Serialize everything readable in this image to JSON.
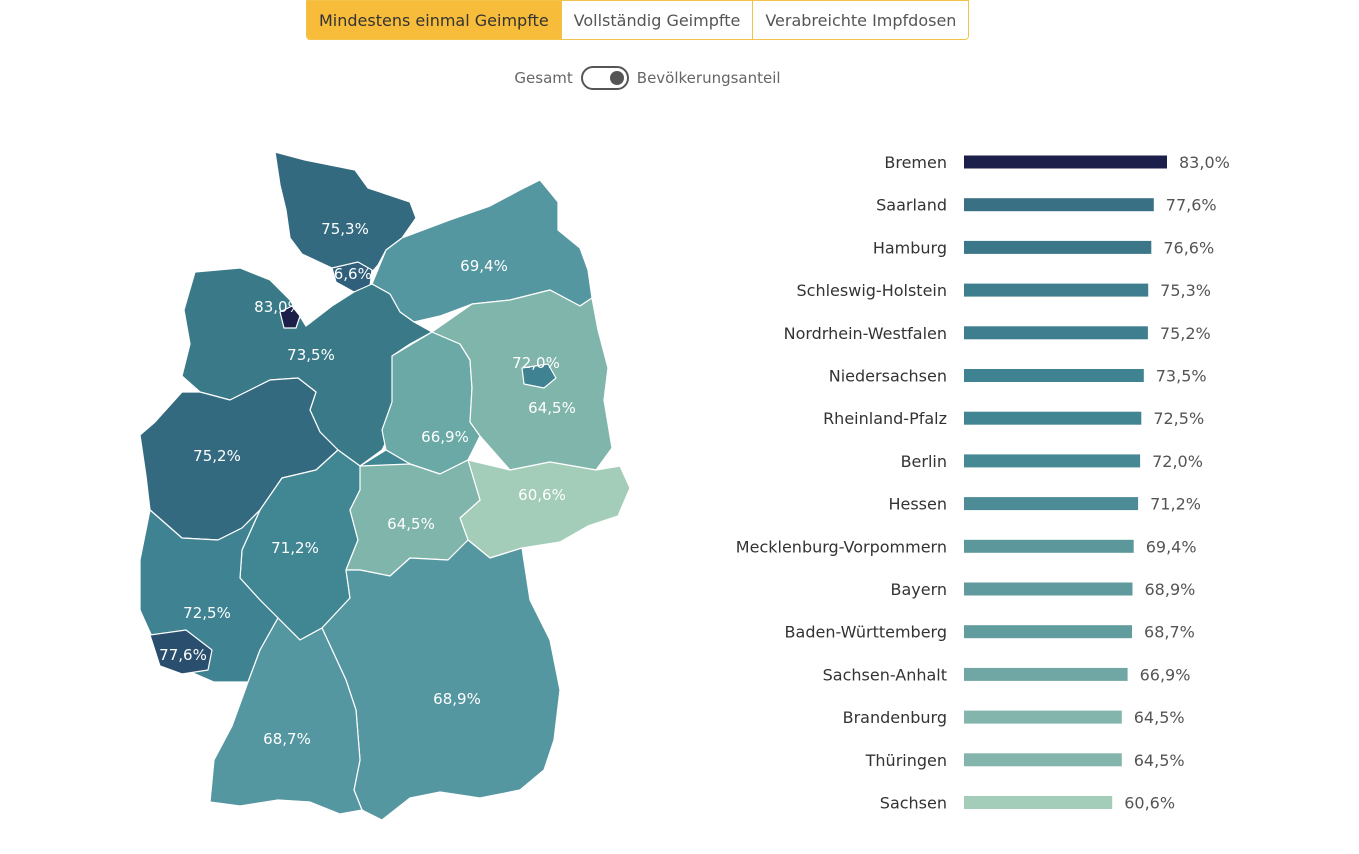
{
  "tabs": [
    {
      "label": "Mindestens einmal Geimpfte",
      "active": true
    },
    {
      "label": "Vollständig Geimpfte",
      "active": false
    },
    {
      "label": "Verabreichte Impfdosen",
      "active": false
    }
  ],
  "toggle": {
    "left_label": "Gesamt",
    "right_label": "Bevölkerungsanteil",
    "state": "Bevölkerungsanteil"
  },
  "colors": {
    "accent": "#f7bd3a",
    "scale_high": "#1c1f4a",
    "scale_low": "#a3cdb9"
  },
  "chart_data": [
    {
      "type": "map",
      "regions": [
        {
          "name": "Schleswig-Holstein",
          "label": "75,3%"
        },
        {
          "name": "Hamburg",
          "label": "76,6%"
        },
        {
          "name": "Mecklenburg-Vorpommern",
          "label": "69,4%"
        },
        {
          "name": "Bremen",
          "label": "83,0%"
        },
        {
          "name": "Niedersachsen",
          "label": "73,5%"
        },
        {
          "name": "Berlin",
          "label": "72,0%"
        },
        {
          "name": "Brandenburg",
          "label": "64,5%"
        },
        {
          "name": "Sachsen-Anhalt",
          "label": "66,9%"
        },
        {
          "name": "Nordrhein-Westfalen",
          "label": "75,2%"
        },
        {
          "name": "Sachsen",
          "label": "60,6%"
        },
        {
          "name": "Hessen",
          "label": "71,2%"
        },
        {
          "name": "Thüringen",
          "label": "64,5%"
        },
        {
          "name": "Rheinland-Pfalz",
          "label": "72,5%"
        },
        {
          "name": "Saarland",
          "label": "77,6%"
        },
        {
          "name": "Bayern",
          "label": "68,9%"
        },
        {
          "name": "Baden-Württemberg",
          "label": "68,7%"
        }
      ]
    },
    {
      "type": "bar",
      "orientation": "horizontal",
      "categories": [
        "Bremen",
        "Saarland",
        "Hamburg",
        "Schleswig-Holstein",
        "Nordrhein-Westfalen",
        "Niedersachsen",
        "Rheinland-Pfalz",
        "Berlin",
        "Hessen",
        "Mecklenburg-Vorpommern",
        "Bayern",
        "Baden-Württemberg",
        "Sachsen-Anhalt",
        "Brandenburg",
        "Thüringen",
        "Sachsen"
      ],
      "values": [
        83.0,
        77.6,
        76.6,
        75.3,
        75.2,
        73.5,
        72.5,
        72.0,
        71.2,
        69.4,
        68.9,
        68.7,
        66.9,
        64.5,
        64.5,
        60.6
      ],
      "labels": [
        "83,0%",
        "77,6%",
        "76,6%",
        "75,3%",
        "75,2%",
        "73,5%",
        "72,5%",
        "72,0%",
        "71,2%",
        "69,4%",
        "68,9%",
        "68,7%",
        "66,9%",
        "64,5%",
        "64,5%",
        "60,6%"
      ],
      "xlim": [
        0,
        83.0
      ]
    }
  ]
}
